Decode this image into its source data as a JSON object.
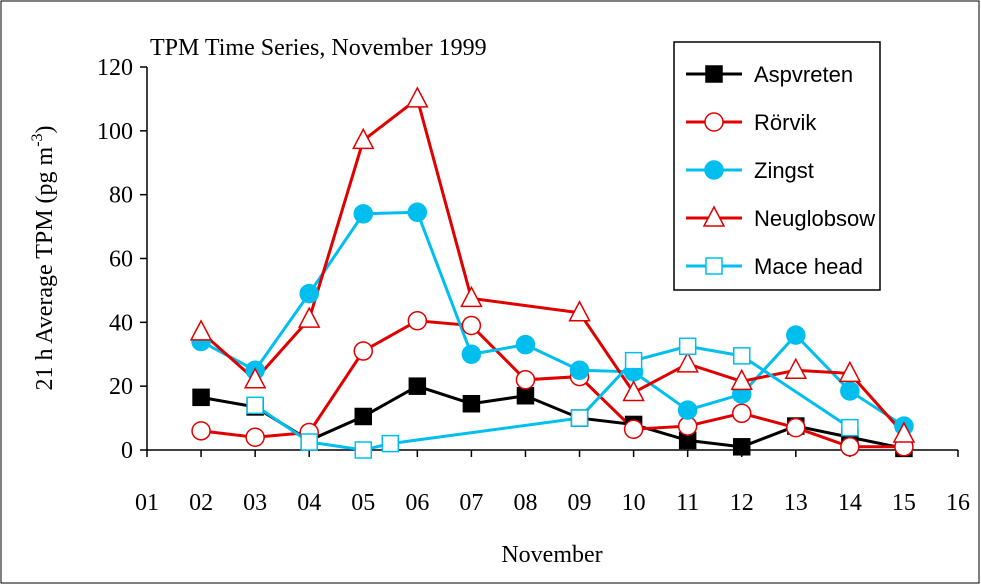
{
  "chart_data": {
    "type": "line",
    "title": "TPM Time Series, November 1999",
    "x_label": "November",
    "y_label": {
      "text": "21 h Average TPM  (pg m",
      "superscript": "-3",
      "suffix": ")"
    },
    "xlim": [
      1,
      16
    ],
    "xticks": [
      {
        "value": 1,
        "label": "01"
      },
      {
        "value": 2,
        "label": "02"
      },
      {
        "value": 3,
        "label": "03"
      },
      {
        "value": 4,
        "label": "04"
      },
      {
        "value": 5,
        "label": "05"
      },
      {
        "value": 6,
        "label": "06"
      },
      {
        "value": 7,
        "label": "07"
      },
      {
        "value": 8,
        "label": "08"
      },
      {
        "value": 9,
        "label": "09"
      },
      {
        "value": 10,
        "label": "10"
      },
      {
        "value": 11,
        "label": "11"
      },
      {
        "value": 12,
        "label": "12"
      },
      {
        "value": 13,
        "label": "13"
      },
      {
        "value": 14,
        "label": "14"
      },
      {
        "value": 15,
        "label": "15"
      },
      {
        "value": 16,
        "label": "16"
      }
    ],
    "ylim": [
      0,
      120
    ],
    "yticks": [
      0,
      20,
      40,
      60,
      80,
      100,
      120
    ],
    "grid": false,
    "legend": "upper right",
    "series": [
      {
        "name": "Aspvreten",
        "color": "#000000",
        "marker": "square",
        "filled": true,
        "x": [
          2,
          3,
          4,
          5,
          6,
          7,
          8,
          9,
          10,
          11,
          12,
          13,
          14,
          15
        ],
        "values": [
          16.5,
          13.5,
          3,
          10.5,
          20,
          14.5,
          17,
          10,
          8,
          3,
          1,
          7.5,
          4,
          0.5
        ]
      },
      {
        "name": "Rörvik",
        "color": "#e00000",
        "marker": "circle",
        "filled": false,
        "x": [
          2,
          3,
          4,
          5,
          6,
          7,
          8,
          9,
          10,
          11,
          12,
          13,
          14,
          15
        ],
        "values": [
          6,
          4,
          5.5,
          31,
          40.5,
          39,
          22,
          23,
          6.5,
          7.5,
          11.5,
          7,
          1,
          1
        ]
      },
      {
        "name": "Zingst",
        "color": "#00bfef",
        "marker": "circle",
        "filled": true,
        "x": [
          2,
          3,
          4,
          5,
          6,
          7,
          8,
          9,
          10,
          11,
          12,
          13,
          14,
          15
        ],
        "values": [
          34,
          25,
          49,
          74,
          74.5,
          30,
          33,
          25,
          24.5,
          12.5,
          17.5,
          36,
          18.5,
          7.5
        ]
      },
      {
        "name": "Neuglobsow",
        "color": "#e00000",
        "marker": "triangle",
        "filled": false,
        "x": [
          2,
          3,
          4,
          5,
          6,
          7,
          9,
          10,
          11,
          12,
          13,
          14,
          15
        ],
        "values": [
          37,
          22,
          41,
          97,
          110,
          47.5,
          43,
          18,
          27,
          21.5,
          25,
          24,
          5
        ]
      },
      {
        "name": "Mace head",
        "color": "#00bfef",
        "marker": "square",
        "filled": false,
        "x": [
          3,
          4,
          5,
          5.5,
          9,
          10,
          11,
          12,
          14
        ],
        "values": [
          14,
          2.5,
          0,
          2,
          10,
          28,
          32.5,
          29.5,
          7
        ]
      }
    ]
  }
}
